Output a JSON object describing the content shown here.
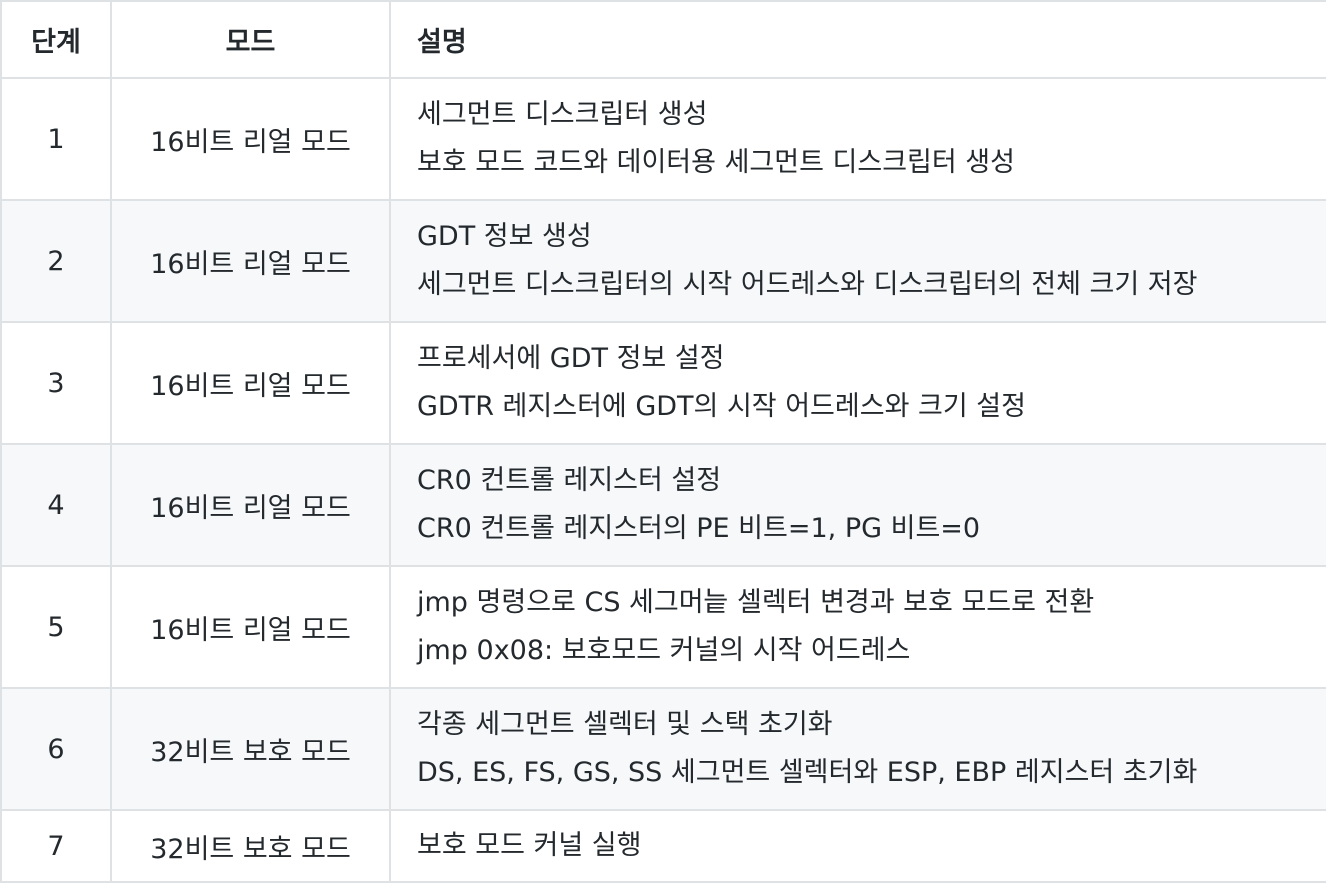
{
  "headers": {
    "step": "단계",
    "mode": "모드",
    "description": "설명"
  },
  "rows": [
    {
      "step": "1",
      "mode": "16비트 리얼 모드",
      "desc_title": "세그먼트 디스크립터 생성",
      "desc_detail": "보호 모드 코드와 데이터용 세그먼트 디스크립터 생성"
    },
    {
      "step": "2",
      "mode": "16비트 리얼 모드",
      "desc_title": "GDT 정보 생성",
      "desc_detail": "세그먼트 디스크립터의 시작 어드레스와 디스크립터의 전체 크기 저장"
    },
    {
      "step": "3",
      "mode": "16비트 리얼 모드",
      "desc_title": "프로세서에 GDT 정보 설정",
      "desc_detail": "GDTR 레지스터에 GDT의 시작 어드레스와 크기 설정"
    },
    {
      "step": "4",
      "mode": "16비트 리얼 모드",
      "desc_title": "CR0 컨트롤 레지스터 설정",
      "desc_detail": "CR0 컨트롤 레지스터의 PE 비트=1, PG 비트=0"
    },
    {
      "step": "5",
      "mode": "16비트 리얼 모드",
      "desc_title": "jmp 명령으로 CS 세그머늩 셀렉터 변경과 보호 모드로 전환",
      "desc_detail": "jmp 0x08: 보호모드 커널의 시작 어드레스"
    },
    {
      "step": "6",
      "mode": "32비트 보호 모드",
      "desc_title": "각종 세그먼트 셀렉터 및 스택 초기화",
      "desc_detail": "DS, ES, FS, GS, SS 세그먼트 셀렉터와 ESP, EBP 레지스터 초기화"
    },
    {
      "step": "7",
      "mode": "32비트 보호 모드",
      "desc_title": "보호 모드 커널 실행",
      "desc_detail": ""
    }
  ]
}
